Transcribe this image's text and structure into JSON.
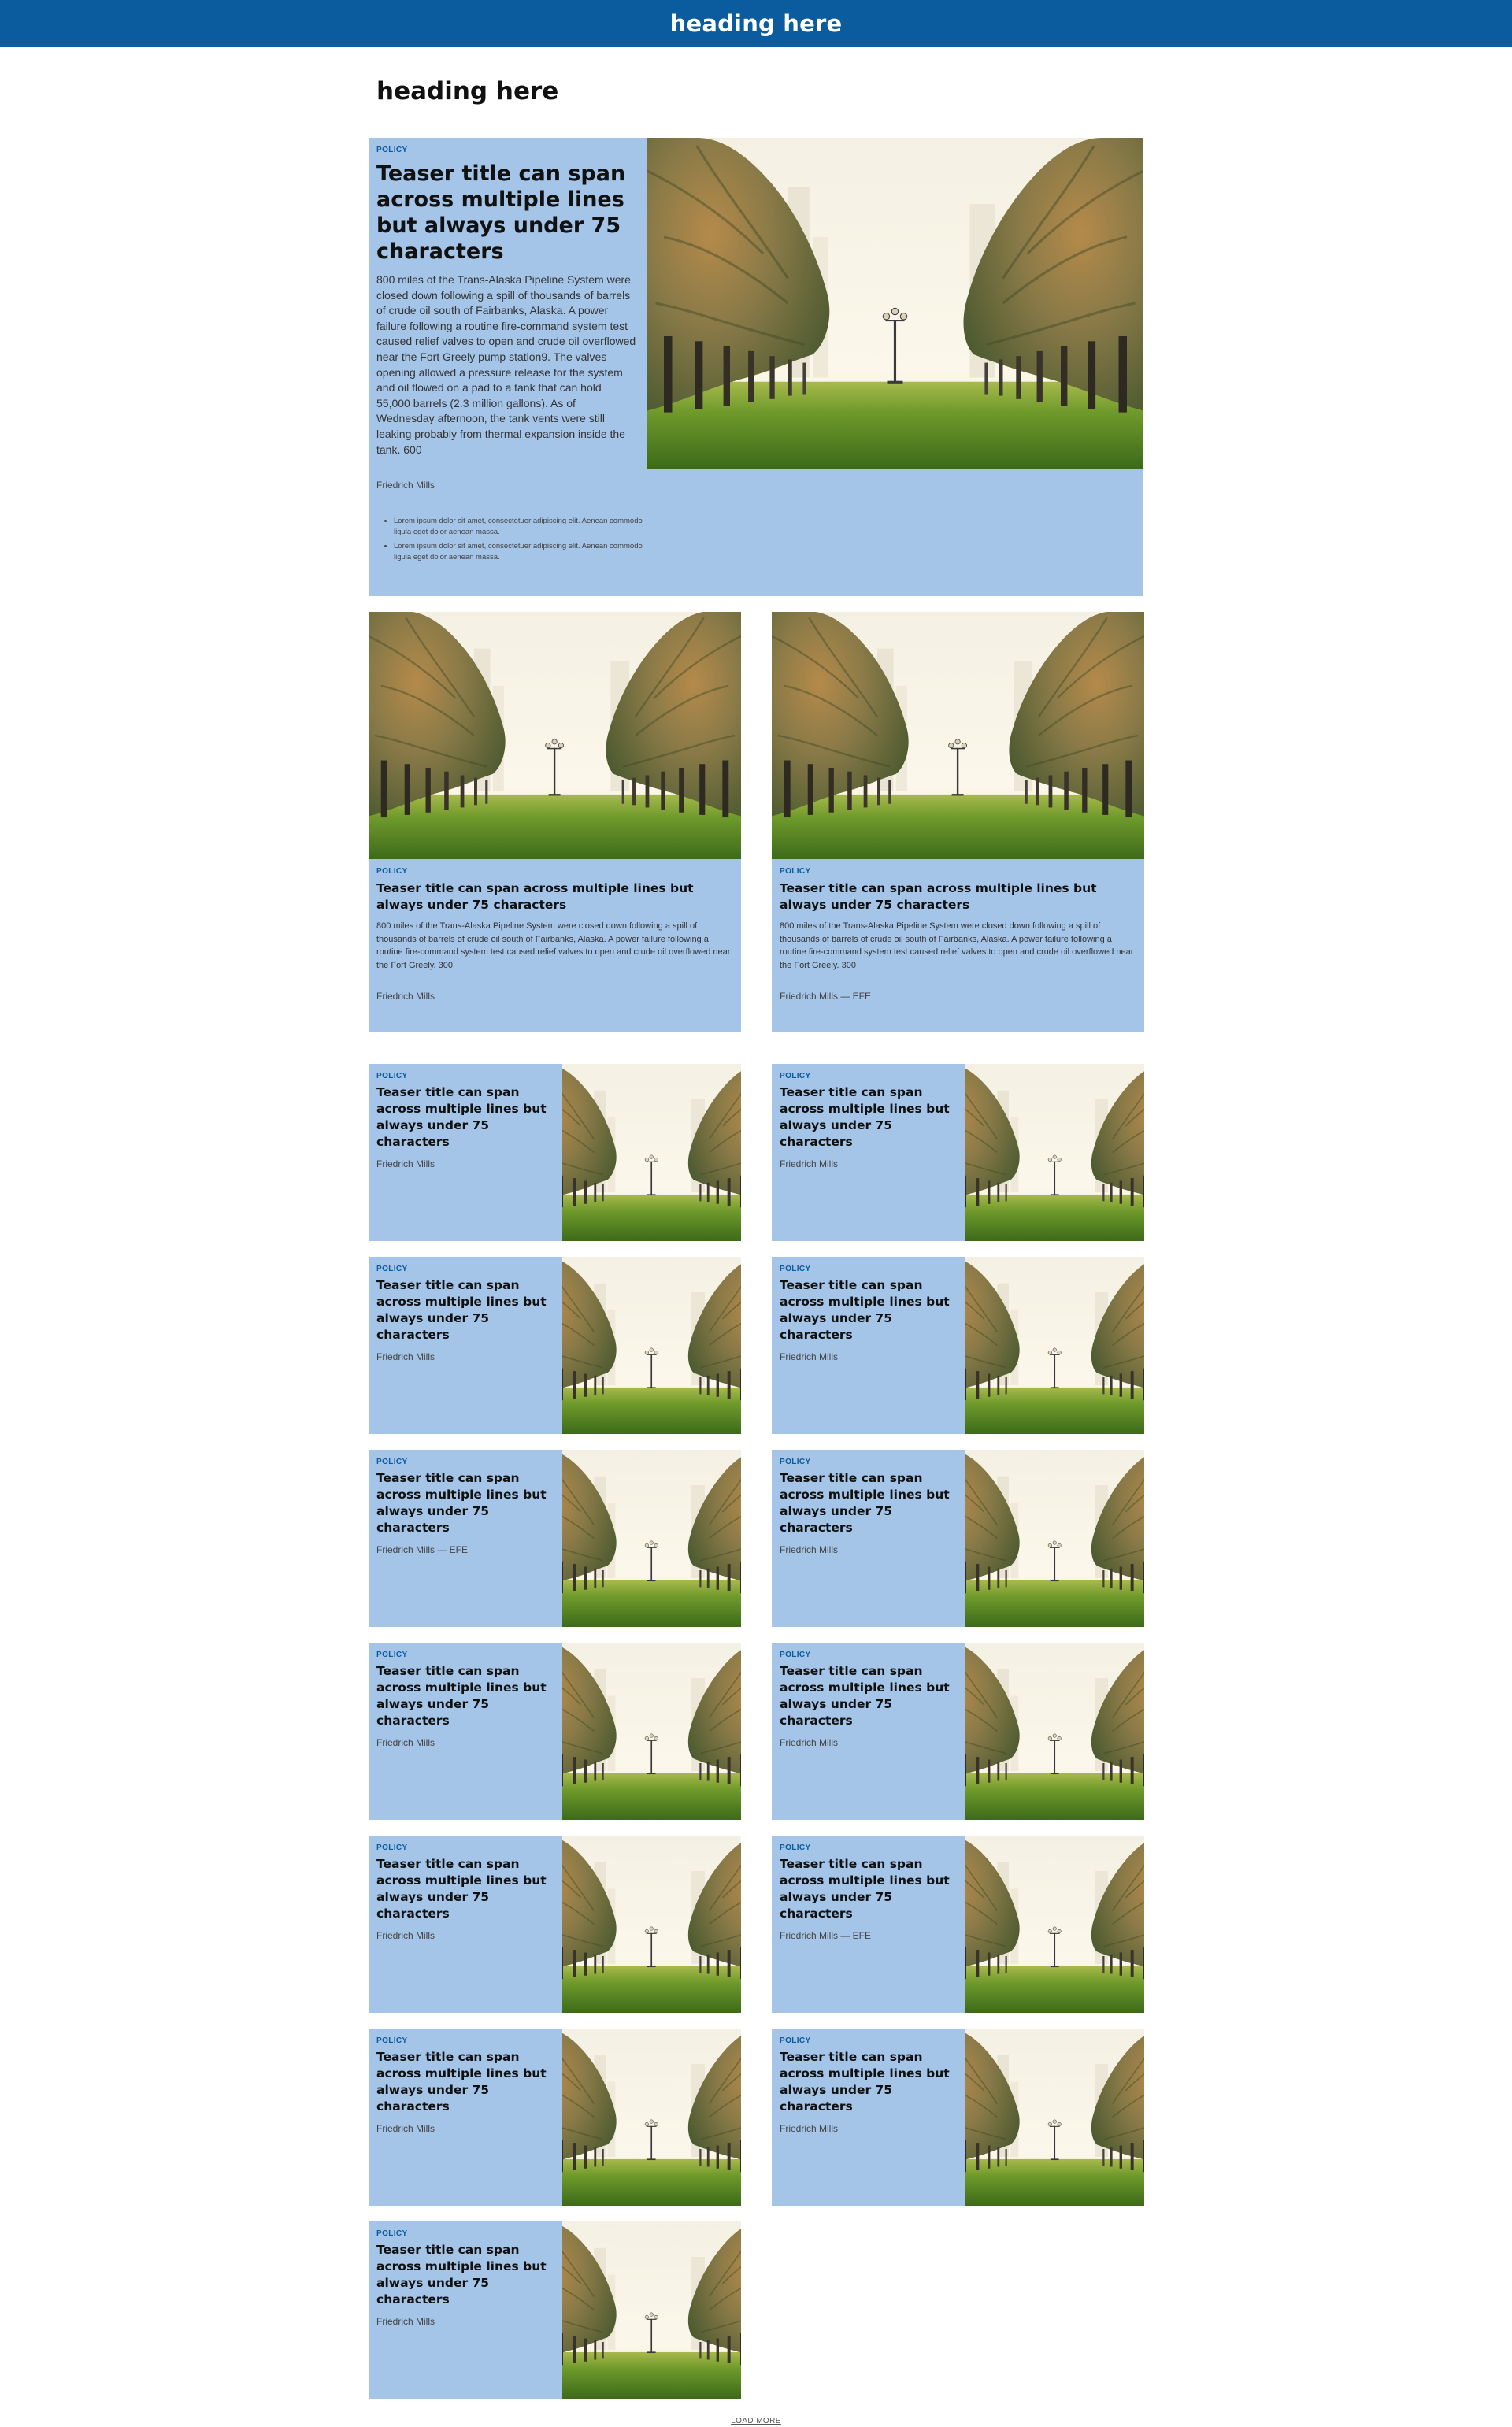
{
  "header": {
    "title": "heading here"
  },
  "section": {
    "heading": "heading here"
  },
  "hero": {
    "kicker": "POLICY",
    "title": "Teaser title can span across multiple lines but always under 75 characters",
    "summary": "800 miles of the Trans-Alaska Pipeline System were closed down following a spill of thousands of barrels of crude oil south of Fairbanks, Alaska. A power failure following a routine fire-command system test caused relief valves to open and crude oil overflowed near the Fort Greely pump station9. The valves opening allowed a pressure release for the system and oil flowed on a pad to a tank that can hold 55,000 barrels (2.3 million gallons). As of Wednesday afternoon, the tank vents were still leaking probably from thermal expansion inside the tank. 600",
    "byline": "Friedrich Mills",
    "bullets": [
      "Lorem ipsum dolor sit amet, consectetuer adipiscing elit. Aenean commodo ligula eget dolor aenean massa.",
      "Lorem ipsum dolor sit amet, consectetuer adipiscing elit. Aenean commodo ligula eget dolor aenean massa."
    ]
  },
  "medium_cards": [
    {
      "kicker": "POLICY",
      "title": "Teaser title can span across multiple lines but always under 75 characters",
      "summary": "800 miles of the Trans-Alaska Pipeline System were closed down following a spill of thousands of barrels of crude oil south of Fairbanks, Alaska. A power failure following a routine fire-command system test caused relief valves to open and crude oil overflowed near the Fort Greely. 300",
      "byline": "Friedrich Mills"
    },
    {
      "kicker": "POLICY",
      "title": "Teaser title can span across multiple lines but always under 75 characters",
      "summary": "800 miles of the Trans-Alaska Pipeline System were closed down following a spill of thousands of barrels of crude oil south of Fairbanks, Alaska. A power failure following a routine fire-command system test caused relief valves to open and crude oil overflowed near the Fort Greely. 300",
      "byline": "Friedrich Mills — EFE"
    }
  ],
  "small_cards": [
    {
      "kicker": "POLICY",
      "title": "Teaser title can span across multiple lines but always under 75 characters",
      "byline": "Friedrich Mills"
    },
    {
      "kicker": "POLICY",
      "title": "Teaser title can span across multiple lines but always under 75 characters",
      "byline": "Friedrich Mills"
    },
    {
      "kicker": "POLICY",
      "title": "Teaser title can span across multiple lines but always under 75 characters",
      "byline": "Friedrich Mills"
    },
    {
      "kicker": "POLICY",
      "title": "Teaser title can span across multiple lines but always under 75 characters",
      "byline": "Friedrich Mills"
    },
    {
      "kicker": "POLICY",
      "title": "Teaser title can span across multiple lines but always under 75 characters",
      "byline": "Friedrich Mills — EFE"
    },
    {
      "kicker": "POLICY",
      "title": "Teaser title can span across multiple lines but always under 75 characters",
      "byline": "Friedrich Mills"
    },
    {
      "kicker": "POLICY",
      "title": "Teaser title can span across multiple lines but always under 75 characters",
      "byline": "Friedrich Mills"
    },
    {
      "kicker": "POLICY",
      "title": "Teaser title can span across multiple lines but always under 75 characters",
      "byline": "Friedrich Mills"
    },
    {
      "kicker": "POLICY",
      "title": "Teaser title can span across multiple lines but always under 75 characters",
      "byline": "Friedrich Mills"
    },
    {
      "kicker": "POLICY",
      "title": "Teaser title can span across multiple lines but always under 75 characters",
      "byline": "Friedrich Mills — EFE"
    },
    {
      "kicker": "POLICY",
      "title": "Teaser title can span across multiple lines but always under 75 characters",
      "byline": "Friedrich Mills"
    },
    {
      "kicker": "POLICY",
      "title": "Teaser title can span across multiple lines but always under 75 characters",
      "byline": "Friedrich Mills"
    },
    {
      "kicker": "POLICY",
      "title": "Teaser title can span across multiple lines but always under 75 characters",
      "byline": "Friedrich Mills"
    }
  ],
  "load_more": {
    "label": "LOAD MORE"
  },
  "colors": {
    "brand": "#0a5c9e",
    "card_bg": "#a4c4e8",
    "kicker": "#0a5c9e"
  },
  "images": {
    "teaser_photo": "palm-tree-avenue-photo"
  }
}
